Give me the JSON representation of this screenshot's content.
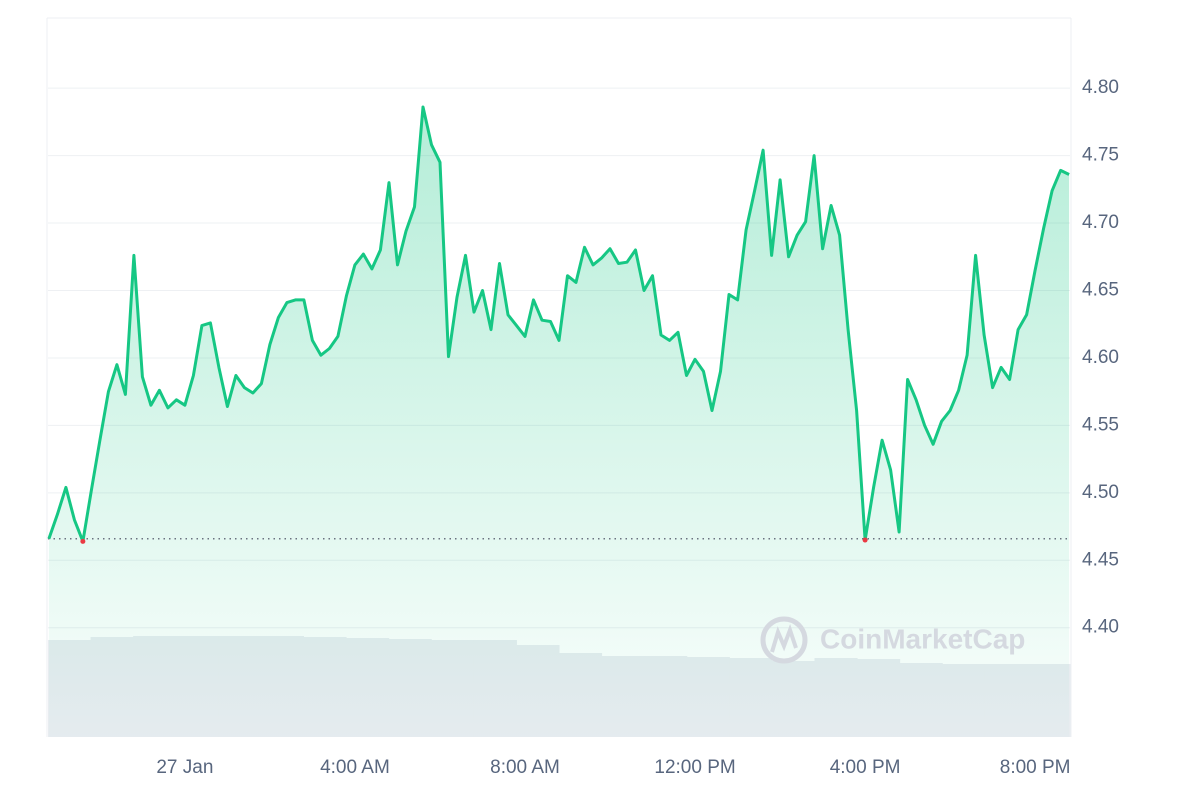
{
  "chart_data": {
    "type": "line",
    "watermark": "CoinMarketCap",
    "x": [
      -3.2,
      -3.0,
      -2.8,
      -2.6,
      -2.4,
      -2.2,
      -2.0,
      -1.8,
      -1.6,
      -1.4,
      -1.2,
      -1.0,
      -0.8,
      -0.6,
      -0.4,
      -0.2,
      0,
      0.2,
      0.4,
      0.6,
      0.8,
      1.0,
      1.2,
      1.4,
      1.6,
      1.8,
      2.0,
      2.2,
      2.4,
      2.6,
      2.8,
      3.0,
      3.2,
      3.4,
      3.6,
      3.8,
      4.0,
      4.2,
      4.4,
      4.6,
      4.8,
      5.0,
      5.2,
      5.4,
      5.6,
      5.8,
      6.0,
      6.2,
      6.4,
      6.6,
      6.8,
      7.0,
      7.2,
      7.4,
      7.6,
      7.8,
      8.0,
      8.2,
      8.4,
      8.6,
      8.8,
      9.0,
      9.2,
      9.4,
      9.6,
      9.8,
      10.0,
      10.2,
      10.4,
      10.6,
      10.8,
      11.0,
      11.2,
      11.4,
      11.6,
      11.8,
      12.0,
      12.2,
      12.4,
      12.6,
      12.8,
      13.0,
      13.2,
      13.4,
      13.6,
      13.8,
      14.0,
      14.2,
      14.4,
      14.6,
      14.8,
      15.0,
      15.2,
      15.4,
      15.6,
      15.8,
      16.0,
      16.2,
      16.4,
      16.6,
      16.8,
      17.0,
      17.2,
      17.4,
      17.6,
      17.8,
      18.0,
      18.2,
      18.4,
      18.6,
      18.8,
      19.0,
      19.2,
      19.4,
      19.6,
      19.8,
      20.0,
      20.2,
      20.4,
      20.6,
      20.8
    ],
    "series": [
      {
        "color": "#16c784",
        "values": [
          4.466,
          4.484,
          4.504,
          4.48,
          4.464,
          4.502,
          4.539,
          4.575,
          4.595,
          4.573,
          4.676,
          4.586,
          4.565,
          4.576,
          4.563,
          4.569,
          4.565,
          4.587,
          4.624,
          4.626,
          4.593,
          4.564,
          4.587,
          4.578,
          4.574,
          4.581,
          4.61,
          4.63,
          4.641,
          4.643,
          4.643,
          4.613,
          4.602,
          4.607,
          4.616,
          4.646,
          4.669,
          4.677,
          4.666,
          4.68,
          4.73,
          4.669,
          4.694,
          4.712,
          4.786,
          4.758,
          4.745,
          4.601,
          4.645,
          4.676,
          4.634,
          4.65,
          4.621,
          4.67,
          4.632,
          4.624,
          4.616,
          4.643,
          4.628,
          4.627,
          4.613,
          4.661,
          4.656,
          4.682,
          4.669,
          4.674,
          4.681,
          4.67,
          4.671,
          4.68,
          4.65,
          4.661,
          4.617,
          4.613,
          4.619,
          4.587,
          4.599,
          4.59,
          4.561,
          4.59,
          4.647,
          4.643,
          4.695,
          4.724,
          4.754,
          4.676,
          4.732,
          4.675,
          4.691,
          4.701,
          4.75,
          4.681,
          4.713,
          4.691,
          4.621,
          4.561,
          4.465,
          4.504,
          4.539,
          4.517,
          4.471,
          4.584,
          4.569,
          4.55,
          4.536,
          4.553,
          4.561,
          4.576,
          4.602,
          4.676,
          4.617,
          4.578,
          4.593,
          4.584,
          4.621,
          4.632,
          4.665,
          4.696,
          4.724,
          4.739,
          4.736
        ]
      }
    ],
    "volume": {
      "color": "#e9ecf1",
      "values": [
        97,
        100,
        101,
        101,
        101,
        101,
        100,
        99,
        98,
        97,
        97,
        92,
        84,
        81,
        81,
        80,
        79,
        76,
        79,
        78,
        74,
        73,
        73,
        73
      ]
    },
    "xlim": [
      -3.22,
      20.82
    ],
    "xticks": [
      {
        "value": 0,
        "label": "27 Jan"
      },
      {
        "value": 4,
        "label": "4:00 AM"
      },
      {
        "value": 8,
        "label": "8:00 AM"
      },
      {
        "value": 12,
        "label": "12:00 PM"
      },
      {
        "value": 16,
        "label": "4:00 PM"
      },
      {
        "value": 20,
        "label": "8:00 PM"
      }
    ],
    "ylim": [
      4.319,
      4.852
    ],
    "yticks": [
      {
        "value": 4.4,
        "label": "4.40"
      },
      4.45,
      {
        "value": 4.5,
        "label": "4.50"
      },
      4.55,
      {
        "value": 4.6,
        "label": "4.60"
      },
      4.65,
      {
        "value": 4.7,
        "label": "4.70"
      },
      4.75,
      {
        "value": 4.8,
        "label": "4.80"
      }
    ],
    "grid": true
  }
}
